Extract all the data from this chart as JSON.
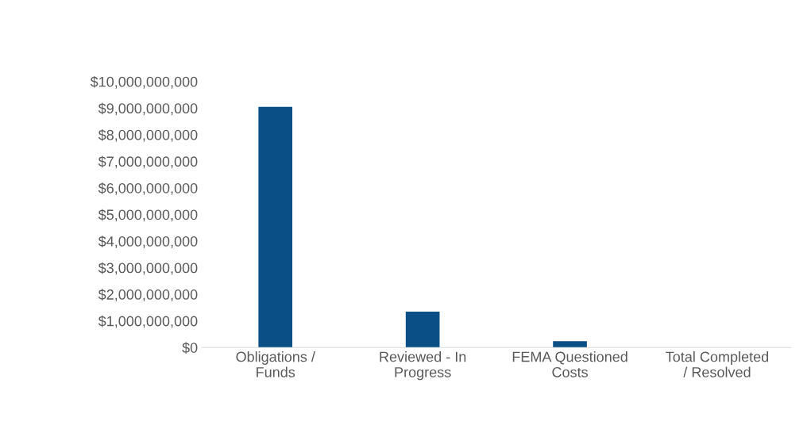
{
  "chart_data": {
    "type": "bar",
    "categories": [
      "Obligations / Funds",
      "Reviewed - In Progress",
      "FEMA Questioned Costs",
      "Total Completed / Resolved"
    ],
    "values": [
      9050000000,
      1350000000,
      240000000,
      0
    ],
    "color": "#0a4f86",
    "ylim": [
      0,
      10000000000
    ],
    "yticks": [
      {
        "value": 0,
        "label": "$0"
      },
      {
        "value": 1000000000,
        "label": "$1,000,000,000"
      },
      {
        "value": 2000000000,
        "label": "$2,000,000,000"
      },
      {
        "value": 3000000000,
        "label": "$3,000,000,000"
      },
      {
        "value": 4000000000,
        "label": "$4,000,000,000"
      },
      {
        "value": 5000000000,
        "label": "$5,000,000,000"
      },
      {
        "value": 6000000000,
        "label": "$6,000,000,000"
      },
      {
        "value": 7000000000,
        "label": "$7,000,000,000"
      },
      {
        "value": 8000000000,
        "label": "$8,000,000,000"
      },
      {
        "value": 9000000000,
        "label": "$9,000,000,000"
      },
      {
        "value": 10000000000,
        "label": "$10,000,000,000"
      }
    ],
    "grid": false
  }
}
